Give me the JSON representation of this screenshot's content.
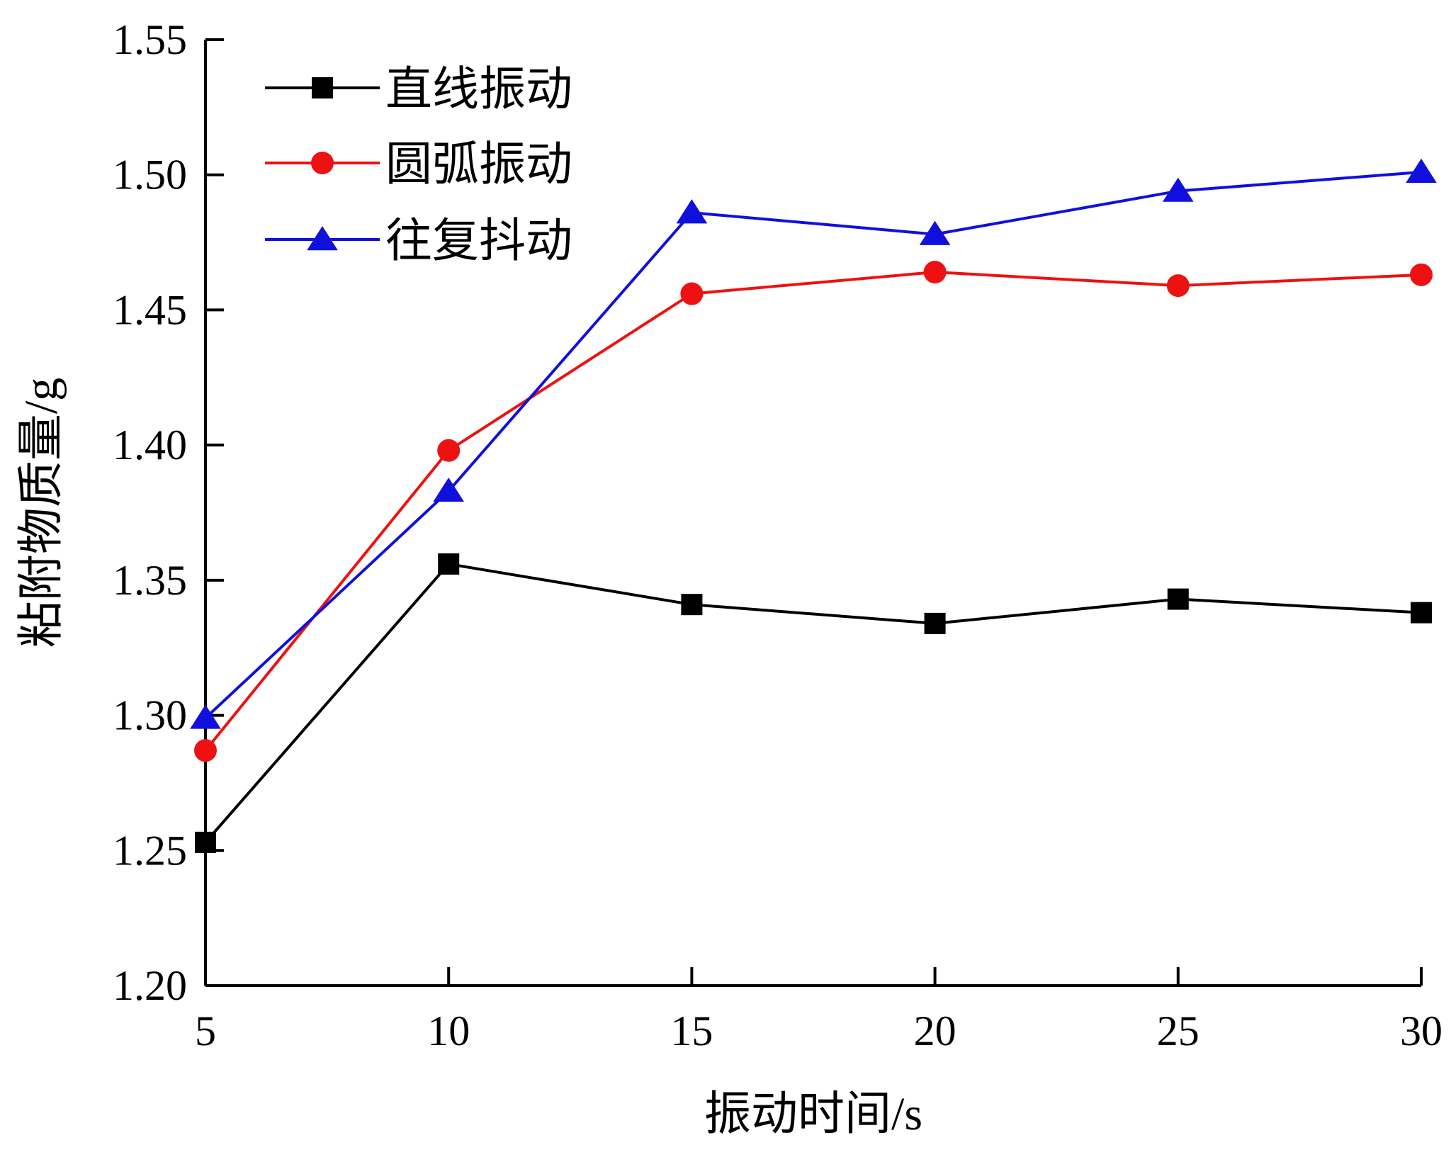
{
  "chart_data": {
    "type": "line",
    "xlabel": "振动时间/s",
    "ylabel": "粘附物质量/g",
    "x": [
      5,
      10,
      15,
      20,
      25,
      30
    ],
    "xticks": [
      5,
      10,
      15,
      20,
      25,
      30
    ],
    "xlim": [
      5,
      30
    ],
    "ylim": [
      1.2,
      1.55
    ],
    "yticks": [
      "1.20",
      "1.25",
      "1.30",
      "1.35",
      "1.40",
      "1.45",
      "1.50",
      "1.55"
    ],
    "grid": false,
    "legend_position": "top-left",
    "series": [
      {
        "name": "直线振动",
        "color": "#000000",
        "marker": "square",
        "values": [
          1.253,
          1.356,
          1.341,
          1.334,
          1.343,
          1.338
        ]
      },
      {
        "name": "圆弧振动",
        "color": "#ee1111",
        "marker": "circle",
        "values": [
          1.287,
          1.398,
          1.456,
          1.464,
          1.459,
          1.463
        ]
      },
      {
        "name": "往复抖动",
        "color": "#1010dd",
        "marker": "triangle",
        "values": [
          1.299,
          1.383,
          1.486,
          1.478,
          1.494,
          1.501
        ]
      }
    ]
  }
}
